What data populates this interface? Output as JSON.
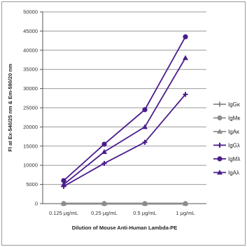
{
  "chart_data": {
    "type": "line",
    "title": "",
    "xlabel": "Dilution of Mouse Anti-Human Lambda-PE",
    "ylabel": "Fl at Ex-540/25 nm & Em-590/20 nm",
    "categories": [
      "0.125 μg/mL",
      "0.25 μg/mL",
      "0.5 μg/mL",
      "1 μg/mL"
    ],
    "ylim": [
      0,
      50000
    ],
    "yticks": [
      0,
      5000,
      10000,
      15000,
      20000,
      25000,
      30000,
      35000,
      40000,
      45000,
      50000
    ],
    "grid": true,
    "legend_position": "right",
    "series": [
      {
        "name": "IgGκ",
        "values": [
          0,
          0,
          0,
          0
        ],
        "color": "#8c8c8c",
        "marker": "plus"
      },
      {
        "name": "IgMκ",
        "values": [
          0,
          0,
          0,
          0
        ],
        "color": "#8c8c8c",
        "marker": "circle"
      },
      {
        "name": "IgAκ",
        "values": [
          0,
          0,
          0,
          0
        ],
        "color": "#8c8c8c",
        "marker": "triangle"
      },
      {
        "name": "IgGλ",
        "values": [
          4500,
          10500,
          16000,
          28500
        ],
        "color": "#4b1c8c",
        "marker": "plus"
      },
      {
        "name": "IgMλ",
        "values": [
          6000,
          15500,
          24500,
          43500
        ],
        "color": "#4b1c8c",
        "marker": "circle"
      },
      {
        "name": "IgAλ",
        "values": [
          5000,
          13500,
          20000,
          38000
        ],
        "color": "#4b1c8c",
        "marker": "triangle"
      }
    ]
  }
}
